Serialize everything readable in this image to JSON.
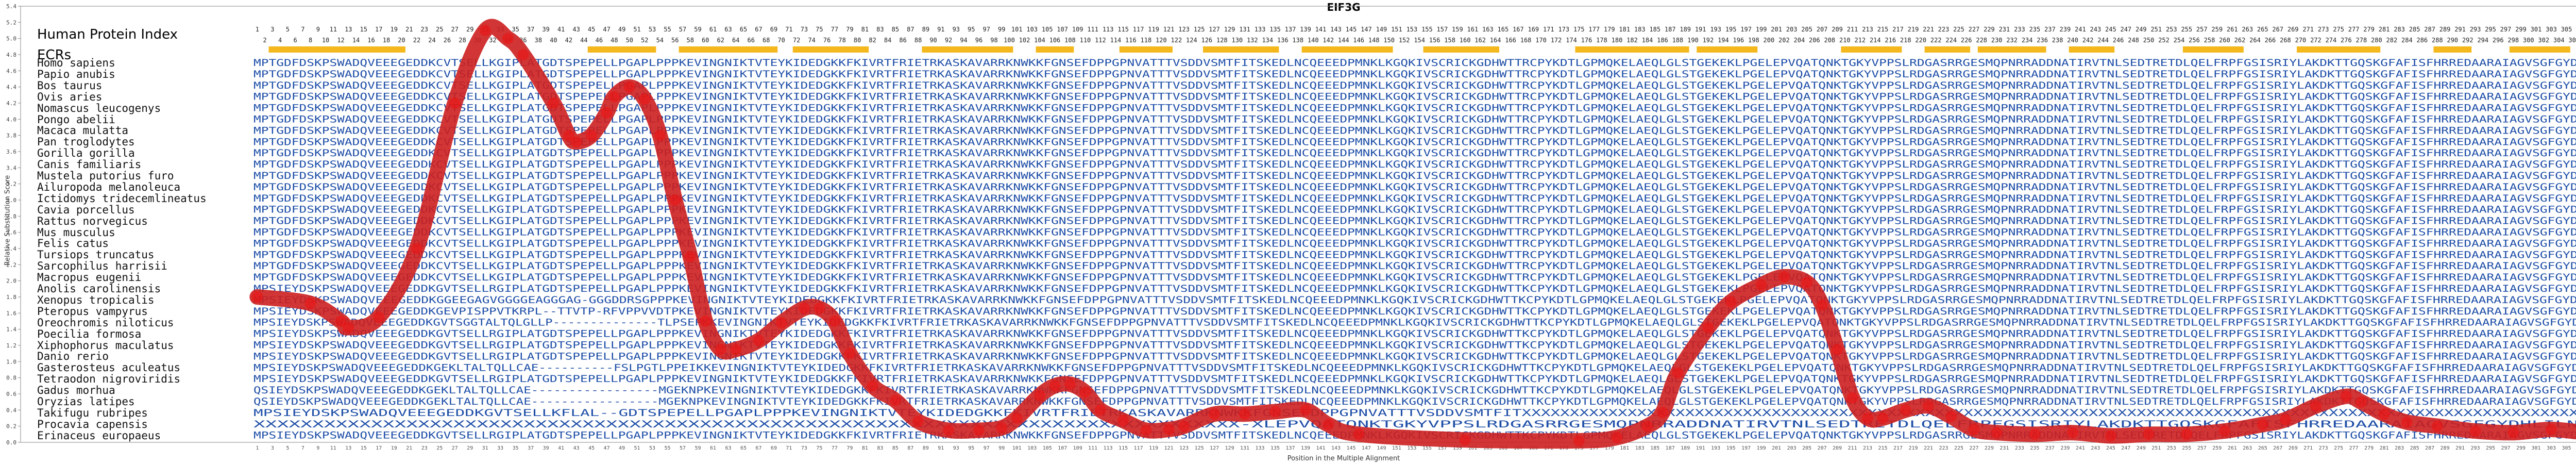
{
  "header": {
    "title": "EIF3G",
    "index_label": "Human Protein Index",
    "ecrs_label": "ECRs",
    "ylabel": "Relative Substitution Score",
    "xlabel": "Position in the Multiple Alignment"
  },
  "colors": {
    "sequence": "#1f4fa8",
    "sequence_muted": "#8aa4d6",
    "sequence_gap": "#9c9c9c",
    "ecr_bar": "#f5b81c",
    "curve": "#cc1f1f",
    "curve_dots": "#ee1111",
    "axis": "#888888"
  },
  "species": [
    "Homo sapiens",
    "Papio anubis",
    "Bos taurus",
    "Ovis aries",
    "Nomascus leucogenys",
    "Pongo abelii",
    "Macaca mulatta",
    "Pan troglodytes",
    "Gorilla gorilla",
    "Canis familiaris",
    "Mustela putorius furo",
    "Ailuropoda melanoleuca",
    "Ictidomys tridecemlineatus",
    "Cavia porcellus",
    "Rattus norvegicus",
    "Mus musculus",
    "Felis catus",
    "Tursiops truncatus",
    "Sarcophilus harrisii",
    "Macropus eugenii",
    "Anolis carolinensis",
    "Xenopus tropicalis",
    "Pteropus vampyrus",
    "Oreochromis niloticus",
    "Poecilia formosa",
    "Xiphophorus maculatus",
    "Danio rerio",
    "Gasterosteus aculeatus",
    "Tetraodon nigroviridis",
    "Gadus morhua",
    "Oryzias latipes",
    "Takifugu rubripes",
    "Procavia capensis",
    "Erinaceus europaeus"
  ],
  "sequences": {
    "mammal_full": "MPTGDFDSKPSWADQVEEEGEDDKCVTSELLKGIPLATGDTSPEPELLPGAPLPPPKEVINGNIKTVTEYKIDEDGKKFKIVRTFRIETRKASKAVARRKNWKKFGNSEFDPPGPNVATTTVSDDVSMTFITSKEDLNCQEEEDPMNKLKGQKIVSCRICKGDHWTTRCPYKDTLGPMQKELAEQLGLSTGEKEKLPGELEPVQATQNKTGKYVPPSLRDGASRRGESMQPNRRADDNATIRVTNLSEDTRETDLQELFRPFGSISRIYLAKDKTTGQSKGFAFISFHRREDAARAIAGVSGFGYDHLILNVEWAKPSTN",
    "fish_full": "MPSIEYDSKPSWADQVEEEGEDDKGVTSELLRGIPLATGDTSPEPELLPGAPLPPPKEVINGNIKTVTEYKIDEDGKKFKIVRTFRIETRKASKAVARRKNWKKFGNSEFDPPGPNVATTTVSDDVSMTFITSKEDLNCQEEEDPMNKLKGQKIVSCRICKGDHWTTKCPYKDTLGPMQKELAEQLGLSTGEKEKLPGELEPVQATQNKTGKYVPPSLRDGASRRGESMQPNRRADDNATIRVTNLSEDTRETDLQELFRPFGSISRIYLAKDKTTGQSKGFAFISFHRREDAARAIAGVSGFGYDHLILNVEWAKPSTN",
    "fragment_end": "XXXXXXXXXXXXXXXXXXXXXXXXXXXXXXXXXXXXXXXXXXXXXXXXXXXXXXXXXXXXXXXXXXXXXXXXXXXXXXXXXXXX-XLEPVQATQNKTGKYVPPSLRDGASRRGESMQPNRRADDNATIRVTNLSEDTRETDLQELFRPFGSISRIYLAKDKTTGQSKGFAFISFHRREDAARAIAGVSGFGYDHLILNVEWAKPSTN",
    "fragment_head": "MPSIEYDSKPSWADQVEEEGEDDKGVTSELLKFLAL--GDTSPEPELLPGAPLPPPKEVINGNIKTVTEYKIDEDGKKFKIVRTFRIETRKASKAVARRKNWKKFGNSEFDPPGPNVATTTVSDDVSMTFITXXXXXXXXXXXXXXXXXXXXXXXXXXXXXXXXXXXXXXXXXXXXXXXXXXXXXXXXXXXXXXXXXXXXXXXXXXXXXXXXXXXXXXXXXXXXXXXXXXXXXXXXXXXXXXXXXXXXXXXXX",
    "pteropus": "MPSIEYDSKPSWADQVEEEGEDDKGEVPISPPVTKRPL--TTVTP-RFVPPVVDTPKEVINGNIKTVTEYKIDEDGKKFKIVRTFRIETRKASKAVARRKNWKKFGNSEFDPPGPNVATTTVSDDVSMTFITSKEDLNCQEEEDPMNKLKGQKIVSCRICKGDHWTTKCPYKDTLGPMQKELAEQLGLSTGEKEKLPGELEPVQATQNKTGKYVPPSLRDGASRRGESMQPNRRADDNATIRVTNLSEDTRETDLQELFRPFGSISRIYLAKDKTTGQSKGFAFISFHRREDAARAIAGVSGFGYDHLILNVEWAKPSTN",
    "xenopus": "MPSIEYDSKPSWADQVEEEGEDDKGGEEGAGVGGGGEAGGGAG-GGGDDRSGPPPKEVINGNIKTVTEYKIDEDGKKFKIVRTFRIETRKASKAVARRKNWKKFGNSEFDPPGPNVATTTVSDDVSMTFITSKEDLNCQEEEDPMNKLKGQKIVSCRICKGDHWTTKCPYKDTLGPMQKELAEQLGLSTGEKEKLPGELEPVQATQNKTGKYVPPSLRDGASRRGESMQPNRRADDNATIRVTNLSEDTRETDLQELFRPFGSISRIYLAKDKTTGQSKGFAFISFHRREDAARAIAGVSGFGYDHLILNVEWAKPSTN",
    "oreochromis": "MPSIEYDSKPSWADQVEEEGEDDKGVTSGGTALTQLGLLP--------------TLPSEPKKEVINGNIKTVTEYKIDEDGKKFKIVRTFRIETRKASKAVARRKNWKKFGNSEFDPPGPNVATTTVSDDVSMTFITSKEDLNCQEEEDPMNKLKGQKIVSCRICKGDHWTTKCPYKDTLGPMQKELAEQLGLSTGEKEKLPGELEPVQATQNKTGKYVPPSLRDGASRRGESMQPNRRADDNATIRVTNLSEDTRETDLQELFRPFGSISRIYLAKDKTTGQSKGFAFISFHRREDAARAIAGVSGFGYDHLILNVEWAKPSTN",
    "gasterosteus": "MPSIEYDSKPSWADQVEEEGEDDKGEKLTALTQLLCAE----------FSLPGTLPPEIKKEVINGNIKTVTEYKIDEDGKKFKIVRTFRIETRKASKAVARRKNWKKFGNSEFDPPGPNVATTTVSDDVSMTFITSKEDLNCQEEEDPMNKLKGQKIVSCRICKGDHWTTKCPYKDTLGPMQKELAEQLGLSTGEKEKLPGELEPVQATQNKTGKYVPPSLRDGASRRGESMQPNRRADDNATIRVTNLSEDTRETDLQELFRPFGSISRIYLAKDKTTGQSKGFAFISFHRREDAARAIAGVSGFGYDHLILNVEWAKPSTN",
    "oryzias": "QSIEYDSKPSWADQVEEEGEDDKGEKLTALTQLLCAE-----------------MGEKNPKEVINGNIKTVTEYKIDEDGKKFKIVRTFRIETRKASKAVARRKNWKKFGNSEFDPPGPNVATTTVSDDVSMTFITSKEDLNCQEEEDPMNKLKGQKIVSCRICKGDHWTTKCPYKDTLGPMQKELAEQLGLSTGEKEKLPGELEPVQATQNKTGKYVPPSLRDGASRRGESMQPNRRADDNATIRVTNLSEDTRETDLQELFRPFGSISRIYLAKDKTTGQSKGFAFISFHRREDAARAIAGVSGFGYDHLILNVEWAKPSTN"
  },
  "chart_data": {
    "type": "line",
    "title": "EIF3G",
    "xlabel": "Position in the Multiple Alignment",
    "ylabel": "Relative Substitution Score",
    "xlim": [
      1,
      320
    ],
    "ylim": [
      0,
      5.4
    ],
    "yticks": [
      0,
      0.2,
      0.4,
      0.6,
      0.8,
      1.0,
      1.2,
      1.4,
      1.6,
      1.8,
      2.0,
      2.2,
      2.4,
      2.6,
      2.8,
      3.0,
      3.2,
      3.4,
      3.6,
      3.8,
      4.0,
      4.2,
      4.4,
      4.6,
      4.8,
      5.0,
      5.2,
      5.4
    ],
    "human_index_max": 319,
    "alignment_length": 320,
    "ecrs": [
      [
        3,
        20
      ],
      [
        45,
        53
      ],
      [
        57,
        69
      ],
      [
        72,
        81
      ],
      [
        89,
        100
      ],
      [
        104,
        108
      ],
      [
        115,
        121
      ],
      [
        126,
        135
      ],
      [
        139,
        150
      ],
      [
        155,
        164
      ],
      [
        175,
        189
      ],
      [
        191,
        198
      ],
      [
        210,
        217
      ],
      [
        221,
        226
      ],
      [
        228,
        236
      ],
      [
        240,
        245
      ],
      [
        255,
        262
      ],
      [
        270,
        280
      ],
      [
        288,
        292
      ],
      [
        298,
        305
      ]
    ],
    "series": [
      {
        "points": [
          [
            1,
            1.8
          ],
          [
            8,
            1.72
          ],
          [
            12,
            1.5
          ],
          [
            13,
            1.42
          ],
          [
            17,
            1.55
          ],
          [
            22,
            2.4
          ],
          [
            27,
            4.2
          ],
          [
            31,
            5.1
          ],
          [
            34,
            5.0
          ],
          [
            36,
            4.8
          ],
          [
            40,
            4.2
          ],
          [
            42,
            3.8
          ],
          [
            43,
            3.72
          ],
          [
            45,
            3.8
          ],
          [
            47,
            4.08
          ],
          [
            48,
            4.28
          ],
          [
            50,
            4.4
          ],
          [
            52,
            4.25
          ],
          [
            54,
            3.8
          ],
          [
            56,
            3.0
          ],
          [
            58,
            2.3
          ],
          [
            60,
            1.5
          ],
          [
            62,
            1.15
          ],
          [
            64,
            1.15
          ],
          [
            67,
            1.26
          ],
          [
            70,
            1.48
          ],
          [
            73,
            1.66
          ],
          [
            75,
            1.66
          ],
          [
            77,
            1.5
          ],
          [
            79,
            1.1
          ],
          [
            82,
            0.7
          ],
          [
            85,
            0.52
          ],
          [
            88,
            0.26
          ],
          [
            92,
            0.15
          ],
          [
            96,
            0.15
          ],
          [
            99,
            0.18
          ],
          [
            101,
            0.3
          ],
          [
            104,
            0.58
          ],
          [
            106,
            0.7
          ],
          [
            108,
            0.72
          ],
          [
            110,
            0.62
          ],
          [
            112,
            0.4
          ],
          [
            115,
            0.27
          ],
          [
            118,
            0.15
          ],
          [
            121,
            0.16
          ],
          [
            123,
            0.2
          ],
          [
            127,
            0.35
          ],
          [
            131,
            0.35
          ],
          [
            135,
            0.38
          ],
          [
            139,
            0.4
          ],
          [
            142,
            0.22
          ],
          [
            146,
            0.1
          ],
          [
            160,
            0.03
          ],
          [
            175,
            0.02
          ],
          [
            180,
            0.06
          ],
          [
            184,
            0.2
          ],
          [
            186,
            0.37
          ],
          [
            188,
            0.86
          ],
          [
            192,
            1.42
          ],
          [
            195,
            1.74
          ],
          [
            199,
            1.95
          ],
          [
            202,
            2.05
          ],
          [
            205,
            1.98
          ],
          [
            207,
            1.7
          ],
          [
            209,
            1.15
          ],
          [
            211,
            0.55
          ],
          [
            213,
            0.3
          ],
          [
            215,
            0.3
          ],
          [
            218,
            0.4
          ],
          [
            221,
            0.45
          ],
          [
            224,
            0.32
          ],
          [
            227,
            0.16
          ],
          [
            230,
            0.12
          ],
          [
            235,
            0.1
          ],
          [
            240,
            0.12
          ],
          [
            245,
            0.08
          ],
          [
            250,
            0.1
          ],
          [
            255,
            0.1
          ],
          [
            260,
            0.14
          ],
          [
            265,
            0.22
          ],
          [
            268,
            0.28
          ],
          [
            272,
            0.45
          ],
          [
            276,
            0.57
          ],
          [
            278,
            0.5
          ],
          [
            281,
            0.35
          ],
          [
            284,
            0.25
          ],
          [
            288,
            0.2
          ],
          [
            293,
            0.14
          ],
          [
            298,
            0.12
          ],
          [
            303,
            0.16
          ],
          [
            308,
            0.12
          ],
          [
            313,
            0.14
          ],
          [
            317,
            0.22
          ],
          [
            320,
            0.26
          ]
        ]
      }
    ]
  }
}
